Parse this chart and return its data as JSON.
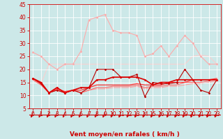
{
  "background_color": "#cce8e8",
  "grid_color": "#ffffff",
  "xlabel": "Vent moyen/en rafales ( km/h )",
  "xlim": [
    -0.5,
    23.5
  ],
  "ylim": [
    5,
    45
  ],
  "yticks": [
    5,
    10,
    15,
    20,
    25,
    30,
    35,
    40,
    45
  ],
  "xticks": [
    0,
    1,
    2,
    3,
    4,
    5,
    6,
    7,
    8,
    9,
    10,
    11,
    12,
    13,
    14,
    15,
    16,
    17,
    18,
    19,
    20,
    21,
    22,
    23
  ],
  "tick_color": "#cc0000",
  "lines": [
    {
      "x": [
        0,
        1,
        2,
        3,
        4,
        5,
        6,
        7,
        8,
        9,
        10,
        11,
        12,
        13,
        14,
        15,
        16,
        17,
        18,
        19,
        20,
        21,
        22,
        23
      ],
      "y": [
        26.5,
        25,
        22,
        20,
        22,
        22,
        27,
        39,
        40,
        41,
        35,
        34,
        34,
        33,
        25,
        26,
        29,
        25,
        29,
        33,
        30,
        25,
        22,
        22
      ],
      "color": "#ffaaaa",
      "lw": 0.8,
      "marker": "D",
      "ms": 1.5,
      "zorder": 2
    },
    {
      "x": [
        0,
        1,
        2,
        3,
        4,
        5,
        6,
        7,
        8,
        9,
        10,
        11,
        12,
        13,
        14,
        15,
        16,
        17,
        18,
        19,
        20,
        21,
        22,
        23
      ],
      "y": [
        16.5,
        15,
        11,
        13,
        11,
        12,
        13,
        13,
        16,
        16,
        17,
        17,
        17,
        17,
        16,
        14,
        15,
        15,
        16,
        16,
        16,
        16,
        16,
        16
      ],
      "color": "#dd0000",
      "lw": 1.2,
      "marker": "D",
      "ms": 1.5,
      "zorder": 5
    },
    {
      "x": [
        0,
        1,
        2,
        3,
        4,
        5,
        6,
        7,
        8,
        9,
        10,
        11,
        12,
        13,
        14,
        15,
        16,
        17,
        18,
        19,
        20,
        21,
        22,
        23
      ],
      "y": [
        16.5,
        14.5,
        11,
        12,
        11,
        12,
        11,
        13,
        20,
        20,
        20,
        17,
        17,
        18,
        9.5,
        15,
        14.5,
        14.5,
        15,
        20,
        16,
        12,
        11,
        16
      ],
      "color": "#bb0000",
      "lw": 0.8,
      "marker": "D",
      "ms": 1.5,
      "zorder": 4
    },
    {
      "x": [
        0,
        1,
        2,
        3,
        4,
        5,
        6,
        7,
        8,
        9,
        10,
        11,
        12,
        13,
        14,
        15,
        16,
        17,
        18,
        19,
        20,
        21,
        22,
        23
      ],
      "y": [
        16.5,
        14.5,
        11,
        12.5,
        11.5,
        12,
        12,
        13,
        14,
        14,
        14,
        14,
        14,
        14.5,
        14,
        14,
        14,
        15,
        15,
        15,
        16,
        16,
        16,
        16.5
      ],
      "color": "#ff3333",
      "lw": 0.9,
      "marker": null,
      "ms": 0,
      "zorder": 3
    },
    {
      "x": [
        0,
        1,
        2,
        3,
        4,
        5,
        6,
        7,
        8,
        9,
        10,
        11,
        12,
        13,
        14,
        15,
        16,
        17,
        18,
        19,
        20,
        21,
        22,
        23
      ],
      "y": [
        16,
        14,
        11,
        12,
        11,
        12,
        11,
        12,
        13,
        13,
        13.5,
        13.5,
        13.5,
        14,
        13,
        13.5,
        13.5,
        14,
        14,
        15,
        15,
        15,
        15.5,
        16
      ],
      "color": "#ff6666",
      "lw": 0.8,
      "marker": null,
      "ms": 0,
      "zorder": 2
    },
    {
      "x": [
        0,
        1,
        2,
        3,
        4,
        5,
        6,
        7,
        8,
        9,
        10,
        11,
        12,
        13,
        14,
        15,
        16,
        17,
        18,
        19,
        20,
        21,
        22,
        23
      ],
      "y": [
        16,
        14,
        11,
        12,
        11,
        12,
        11,
        12,
        12.5,
        12.5,
        13,
        13,
        13,
        13.5,
        12.5,
        13,
        13,
        13.5,
        13.5,
        14,
        14.5,
        14.5,
        15,
        15.5
      ],
      "color": "#ff9999",
      "lw": 0.7,
      "marker": null,
      "ms": 0,
      "zorder": 1
    },
    {
      "x": [
        0,
        1,
        2,
        3,
        4,
        5,
        6,
        7,
        8,
        9,
        10,
        11,
        12,
        13,
        14,
        15,
        16,
        17,
        18,
        19,
        20,
        21,
        22,
        23
      ],
      "y": [
        16.5,
        14.5,
        22,
        22,
        22,
        22,
        22,
        22,
        22,
        22,
        22,
        22,
        22,
        22,
        22,
        22,
        22,
        22,
        22,
        22,
        25,
        25.5,
        25,
        22
      ],
      "color": "#ffcccc",
      "lw": 0.7,
      "marker": null,
      "ms": 0,
      "zorder": 1
    }
  ],
  "arrow_color": "#cc0000",
  "axis_label_fontsize": 6.5,
  "tick_fontsize": 5.5
}
